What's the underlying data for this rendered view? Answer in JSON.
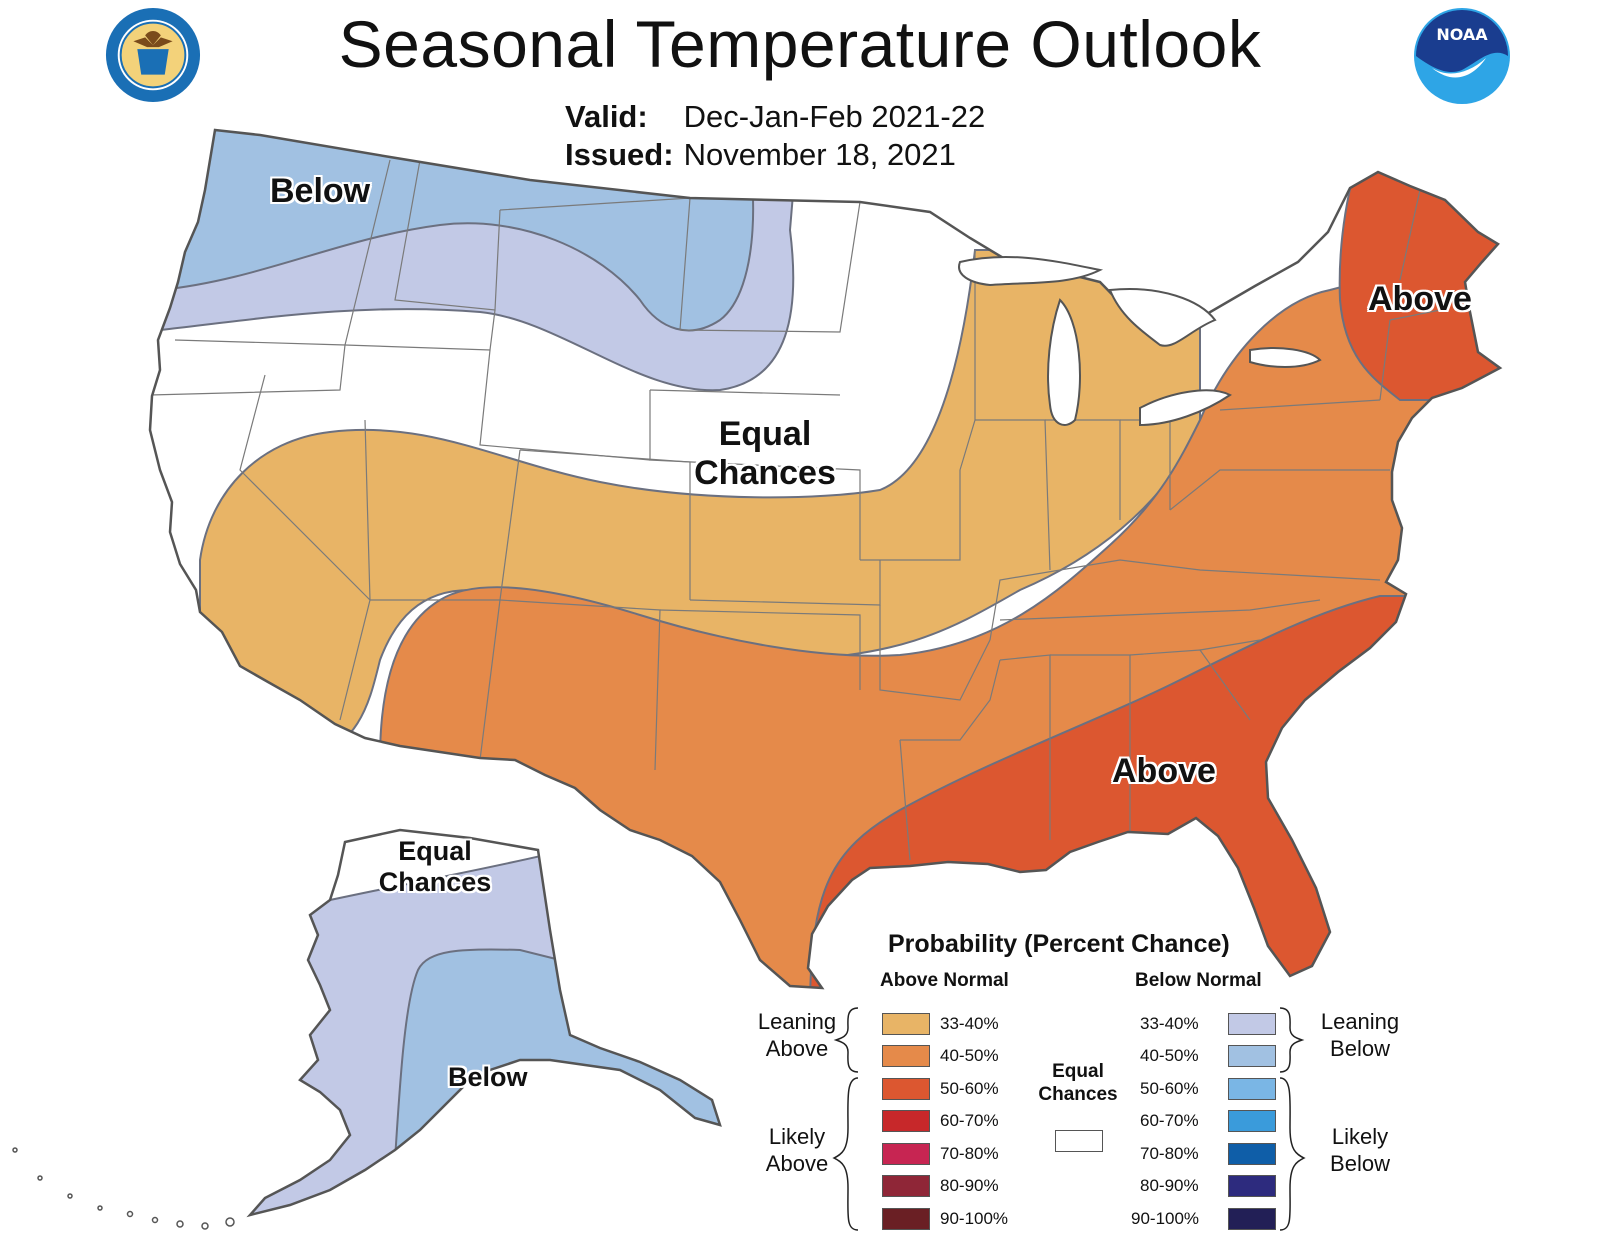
{
  "header": {
    "title": "Seasonal Temperature Outlook",
    "valid_label": "Valid:",
    "valid_value": "Dec-Jan-Feb 2021-22",
    "issued_label": "Issued:",
    "issued_value": "November 18, 2021"
  },
  "logos": {
    "left": "department-of-commerce-seal",
    "right": "noaa-logo",
    "noaa_text": "NOAA"
  },
  "colors": {
    "above_33_40": "#E8B466",
    "above_40_50": "#E58A4A",
    "above_50_60": "#DC5730",
    "above_60_70": "#C7282A",
    "above_70_80": "#C72552",
    "above_80_90": "#8F2637",
    "above_90_100": "#6A1F24",
    "below_33_40": "#C2C9E6",
    "below_40_50": "#A1C1E2",
    "below_50_60": "#7AB6E5",
    "below_60_70": "#3A9BDB",
    "below_70_80": "#0F5EA8",
    "below_80_90": "#2D2B7E",
    "below_90_100": "#221F56",
    "equal_chances": "#FFFFFF"
  },
  "map_labels": {
    "northwest": "Below",
    "central": [
      "Equal",
      "Chances"
    ],
    "northeast": "Above",
    "southeast": "Above",
    "alaska_north": [
      "Equal",
      "Chances"
    ],
    "alaska_south": "Below"
  },
  "legend": {
    "title": "Probability (Percent Chance)",
    "above_header": "Above Normal",
    "below_header": "Below Normal",
    "above_items": [
      "33-40%",
      "40-50%",
      "50-60%",
      "60-70%",
      "70-80%",
      "80-90%",
      "90-100%"
    ],
    "below_items": [
      "33-40%",
      "40-50%",
      "50-60%",
      "60-70%",
      "70-80%",
      "80-90%",
      "90-100%"
    ],
    "leaning_above": [
      "Leaning",
      "Above"
    ],
    "likely_above": [
      "Likely",
      "Above"
    ],
    "leaning_below": [
      "Leaning",
      "Below"
    ],
    "likely_below": [
      "Likely",
      "Below"
    ],
    "equal_chances": [
      "Equal",
      "Chances"
    ]
  }
}
